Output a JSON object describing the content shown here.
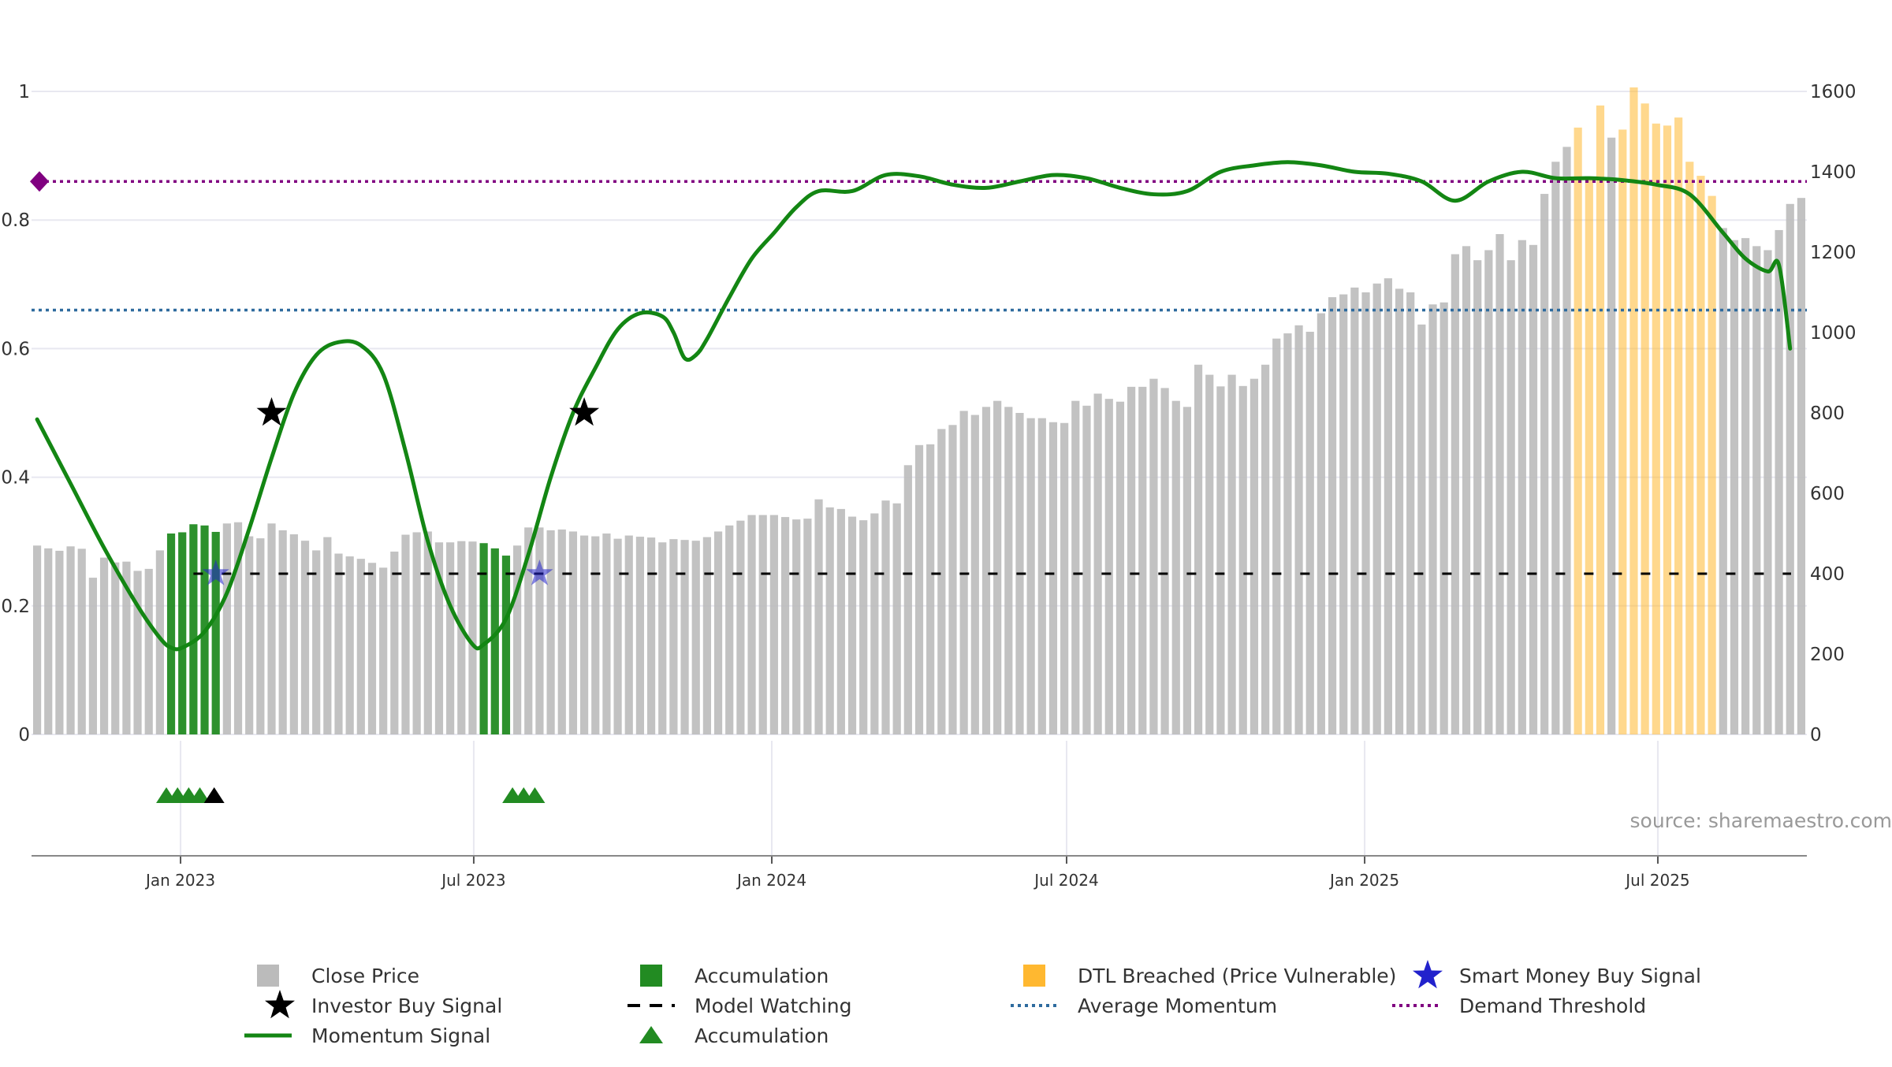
{
  "chart_data": {
    "type": "bar",
    "title": "",
    "watermark": "source: sharemaestro.com",
    "left_axis": {
      "range": [
        0,
        1
      ],
      "ticks": [
        0,
        0.2,
        0.4,
        0.6,
        0.8,
        1
      ],
      "tick_labels": [
        "0",
        "0.2",
        "0.4",
        "0.6",
        "0.8",
        "1"
      ]
    },
    "right_axis": {
      "range": [
        0,
        1600
      ],
      "ticks": [
        0,
        200,
        400,
        600,
        800,
        1000,
        1200,
        1400,
        1600
      ],
      "tick_labels": [
        "0",
        "200",
        "400",
        "600",
        "800",
        "1000",
        "1200",
        "1400",
        "1600"
      ]
    },
    "x_axis": {
      "start": "2022-10-01",
      "end": "2025-10-01",
      "ticks": [
        "2023-01-01",
        "2023-07-01",
        "2024-01-01",
        "2024-07-01",
        "2025-01-01",
        "2025-07-01"
      ],
      "tick_labels": [
        "Jan 2023",
        "Jul 2023",
        "Jan 2024",
        "Jul 2024",
        "Jan 2025",
        "Jul 2025"
      ]
    },
    "colors": {
      "close": "#bbbbbb",
      "accumulation": "#228b22",
      "dtl": "#ffb830",
      "momentum": "#138613",
      "average": "#2e6b9e",
      "demand": "#800080",
      "investor_star": "#000000",
      "smart_star": "#2222cc",
      "watching": "#000000",
      "grid": "#e8e8f0"
    },
    "close_prices": [
      470,
      463,
      457,
      468,
      462,
      390,
      440,
      428,
      430,
      407,
      412,
      458,
      500,
      503,
      523,
      520,
      504,
      525,
      528,
      493,
      488,
      525,
      508,
      498,
      482,
      458,
      491,
      450,
      443,
      437,
      427,
      415,
      455,
      497,
      503,
      505,
      478,
      478,
      481,
      480,
      476,
      463,
      445,
      470,
      515,
      515,
      508,
      510,
      505,
      495,
      493,
      500,
      487,
      495,
      492,
      490,
      478,
      486,
      484,
      482,
      491,
      505,
      520,
      532,
      546,
      546,
      546,
      541,
      535,
      537,
      585,
      565,
      561,
      542,
      533,
      550,
      582,
      575,
      670,
      720,
      722,
      760,
      770,
      805,
      795,
      815,
      830,
      815,
      800,
      787,
      787,
      777,
      775,
      830,
      818,
      848,
      835,
      828,
      865,
      865,
      885,
      862,
      830,
      815,
      920,
      895,
      866,
      895,
      867,
      885,
      920,
      985,
      998,
      1018,
      1002,
      1048,
      1088,
      1095,
      1112,
      1100,
      1122,
      1135,
      1109,
      1100,
      1020,
      1070,
      1075,
      1195,
      1215,
      1180,
      1205,
      1245,
      1180,
      1230,
      1218,
      1345,
      1425,
      1462,
      1510,
      1380,
      1565,
      1485,
      1505,
      1610,
      1570,
      1520,
      1515,
      1535,
      1425,
      1390,
      1340,
      1260,
      1230,
      1235,
      1215,
      1205,
      1255,
      1320,
      1335
    ],
    "accumulation_bars": [
      12,
      13,
      14,
      15,
      16,
      40,
      41,
      42
    ],
    "dtl_bars": [
      138,
      139,
      140,
      142,
      143,
      144,
      145,
      146,
      147,
      148,
      149,
      150
    ],
    "momentum": [
      [
        0,
        0.49
      ],
      [
        3,
        0.39
      ],
      [
        6,
        0.29
      ],
      [
        9,
        0.2
      ],
      [
        11,
        0.15
      ],
      [
        12,
        0.135
      ],
      [
        13,
        0.135
      ],
      [
        15,
        0.16
      ],
      [
        17,
        0.22
      ],
      [
        19,
        0.32
      ],
      [
        21,
        0.43
      ],
      [
        23,
        0.53
      ],
      [
        25,
        0.59
      ],
      [
        27,
        0.61
      ],
      [
        29,
        0.605
      ],
      [
        31,
        0.56
      ],
      [
        33,
        0.44
      ],
      [
        35,
        0.3
      ],
      [
        37,
        0.2
      ],
      [
        39,
        0.14
      ],
      [
        40,
        0.14
      ],
      [
        42,
        0.18
      ],
      [
        44,
        0.28
      ],
      [
        46,
        0.4
      ],
      [
        48,
        0.5
      ],
      [
        50,
        0.57
      ],
      [
        52,
        0.63
      ],
      [
        54,
        0.655
      ],
      [
        56,
        0.65
      ],
      [
        57,
        0.625
      ],
      [
        58,
        0.585
      ],
      [
        59,
        0.59
      ],
      [
        60,
        0.615
      ],
      [
        62,
        0.68
      ],
      [
        64,
        0.74
      ],
      [
        66,
        0.78
      ],
      [
        68,
        0.82
      ],
      [
        70,
        0.845
      ],
      [
        73,
        0.845
      ],
      [
        76,
        0.87
      ],
      [
        79,
        0.868
      ],
      [
        82,
        0.855
      ],
      [
        85,
        0.85
      ],
      [
        88,
        0.86
      ],
      [
        91,
        0.87
      ],
      [
        94,
        0.865
      ],
      [
        97,
        0.85
      ],
      [
        100,
        0.84
      ],
      [
        103,
        0.845
      ],
      [
        106,
        0.875
      ],
      [
        109,
        0.885
      ],
      [
        112,
        0.89
      ],
      [
        115,
        0.885
      ],
      [
        118,
        0.875
      ],
      [
        121,
        0.872
      ],
      [
        124,
        0.86
      ],
      [
        127,
        0.83
      ],
      [
        130,
        0.86
      ],
      [
        133,
        0.875
      ],
      [
        136,
        0.865
      ],
      [
        139,
        0.865
      ],
      [
        142,
        0.862
      ],
      [
        145,
        0.855
      ],
      [
        148,
        0.84
      ],
      [
        151,
        0.78
      ],
      [
        153,
        0.74
      ],
      [
        155,
        0.72
      ],
      [
        156,
        0.73
      ],
      [
        157,
        0.6
      ]
    ],
    "average_momentum": 0.66,
    "demand_threshold": 0.86,
    "model_watching_level": 0.25,
    "model_watching_start": 14,
    "investor_buy_signals": [
      [
        21,
        0.5
      ],
      [
        49,
        0.5
      ]
    ],
    "smart_money_buy_signals": [
      [
        16,
        0.25
      ],
      [
        45,
        0.25
      ]
    ],
    "accumulation_triangles": [
      12,
      13,
      14,
      15,
      43,
      44,
      45
    ],
    "black_triangles": [
      16
    ],
    "legend": [
      {
        "label": "Close Price",
        "symbol": "square",
        "color": "#bbbbbb"
      },
      {
        "label": "Accumulation",
        "symbol": "square",
        "color": "#228b22"
      },
      {
        "label": "DTL Breached (Price Vulnerable)",
        "symbol": "square",
        "color": "#ffb830"
      },
      {
        "label": "Smart Money Buy Signal",
        "symbol": "star",
        "color": "#2222cc"
      },
      {
        "label": "Investor Buy Signal",
        "symbol": "star",
        "color": "#000000"
      },
      {
        "label": "Model Watching",
        "symbol": "dash",
        "color": "#000000"
      },
      {
        "label": "Average Momentum",
        "symbol": "dot",
        "color": "#2e6b9e"
      },
      {
        "label": "Demand Threshold",
        "symbol": "dot",
        "color": "#800080"
      },
      {
        "label": "Momentum Signal",
        "symbol": "line",
        "color": "#138613"
      },
      {
        "label": "Accumulation",
        "symbol": "triangle",
        "color": "#228b22"
      }
    ]
  }
}
